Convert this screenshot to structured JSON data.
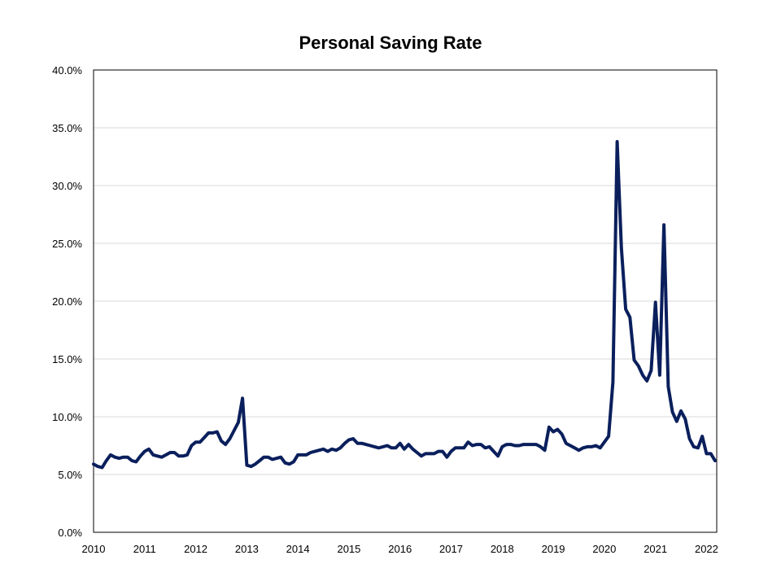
{
  "chart_data": {
    "type": "line",
    "title": "Personal Saving Rate",
    "xlabel": "",
    "ylabel": "",
    "ylim": [
      0,
      40
    ],
    "y_ticks": [
      0,
      5,
      10,
      15,
      20,
      25,
      30,
      35,
      40
    ],
    "y_tick_labels": [
      "0.0%",
      "5.0%",
      "10.0%",
      "15.0%",
      "20.0%",
      "25.0%",
      "30.0%",
      "35.0%",
      "40.0%"
    ],
    "x_ticks": [
      2010,
      2011,
      2012,
      2013,
      2014,
      2015,
      2016,
      2017,
      2018,
      2019,
      2020,
      2021,
      2022
    ],
    "xlim": [
      2010,
      2022.2
    ],
    "grid": true,
    "legend": "none",
    "line_color": "#0a1f5c",
    "series": [
      {
        "x": [
          2010.0,
          2010.083,
          2010.167,
          2010.25,
          2010.333,
          2010.417,
          2010.5,
          2010.583,
          2010.667,
          2010.75,
          2010.833,
          2010.917,
          2011.0,
          2011.083,
          2011.167,
          2011.25,
          2011.333,
          2011.417,
          2011.5,
          2011.583,
          2011.667,
          2011.75,
          2011.833,
          2011.917,
          2012.0,
          2012.083,
          2012.167,
          2012.25,
          2012.333,
          2012.417,
          2012.5,
          2012.583,
          2012.667,
          2012.75,
          2012.833,
          2012.917,
          2013.0,
          2013.083,
          2013.167,
          2013.25,
          2013.333,
          2013.417,
          2013.5,
          2013.583,
          2013.667,
          2013.75,
          2013.833,
          2013.917,
          2014.0,
          2014.083,
          2014.167,
          2014.25,
          2014.333,
          2014.417,
          2014.5,
          2014.583,
          2014.667,
          2014.75,
          2014.833,
          2014.917,
          2015.0,
          2015.083,
          2015.167,
          2015.25,
          2015.333,
          2015.417,
          2015.5,
          2015.583,
          2015.667,
          2015.75,
          2015.833,
          2015.917,
          2016.0,
          2016.083,
          2016.167,
          2016.25,
          2016.333,
          2016.417,
          2016.5,
          2016.583,
          2016.667,
          2016.75,
          2016.833,
          2016.917,
          2017.0,
          2017.083,
          2017.167,
          2017.25,
          2017.333,
          2017.417,
          2017.5,
          2017.583,
          2017.667,
          2017.75,
          2017.833,
          2017.917,
          2018.0,
          2018.083,
          2018.167,
          2018.25,
          2018.333,
          2018.417,
          2018.5,
          2018.583,
          2018.667,
          2018.75,
          2018.833,
          2018.917,
          2019.0,
          2019.083,
          2019.167,
          2019.25,
          2019.333,
          2019.417,
          2019.5,
          2019.583,
          2019.667,
          2019.75,
          2019.833,
          2019.917,
          2020.0,
          2020.083,
          2020.167,
          2020.25,
          2020.333,
          2020.417,
          2020.5,
          2020.583,
          2020.667,
          2020.75,
          2020.833,
          2020.917,
          2021.0,
          2021.083,
          2021.167,
          2021.25,
          2021.333,
          2021.417,
          2021.5,
          2021.583,
          2021.667,
          2021.75,
          2021.833,
          2021.917,
          2022.0,
          2022.083,
          2022.167
        ],
        "values": [
          5.9,
          5.7,
          5.6,
          6.2,
          6.7,
          6.5,
          6.4,
          6.5,
          6.5,
          6.2,
          6.1,
          6.6,
          7.0,
          7.2,
          6.7,
          6.6,
          6.5,
          6.7,
          6.9,
          6.9,
          6.6,
          6.6,
          6.7,
          7.5,
          7.8,
          7.8,
          8.2,
          8.6,
          8.6,
          8.7,
          7.9,
          7.6,
          8.1,
          8.8,
          9.5,
          11.6,
          5.8,
          5.7,
          5.9,
          6.2,
          6.5,
          6.5,
          6.3,
          6.4,
          6.5,
          6.0,
          5.9,
          6.1,
          6.7,
          6.7,
          6.7,
          6.9,
          7.0,
          7.1,
          7.2,
          7.0,
          7.2,
          7.1,
          7.3,
          7.7,
          8.0,
          8.1,
          7.7,
          7.7,
          7.6,
          7.5,
          7.4,
          7.3,
          7.4,
          7.5,
          7.3,
          7.3,
          7.7,
          7.2,
          7.6,
          7.2,
          6.9,
          6.6,
          6.8,
          6.8,
          6.8,
          7.0,
          7.0,
          6.5,
          7.0,
          7.3,
          7.3,
          7.3,
          7.8,
          7.5,
          7.6,
          7.6,
          7.3,
          7.4,
          7.0,
          6.6,
          7.4,
          7.6,
          7.6,
          7.5,
          7.5,
          7.6,
          7.6,
          7.6,
          7.6,
          7.4,
          7.1,
          9.1,
          8.7,
          8.9,
          8.5,
          7.7,
          7.5,
          7.3,
          7.1,
          7.3,
          7.4,
          7.4,
          7.5,
          7.3,
          7.8,
          8.3,
          13.0,
          33.8,
          24.6,
          19.3,
          18.6,
          14.9,
          14.4,
          13.6,
          13.1,
          14.0,
          19.9,
          13.6,
          26.6,
          12.6,
          10.4,
          9.6,
          10.5,
          9.8,
          8.1,
          7.4,
          7.3,
          8.3,
          6.8,
          6.8,
          6.2
        ]
      }
    ]
  }
}
